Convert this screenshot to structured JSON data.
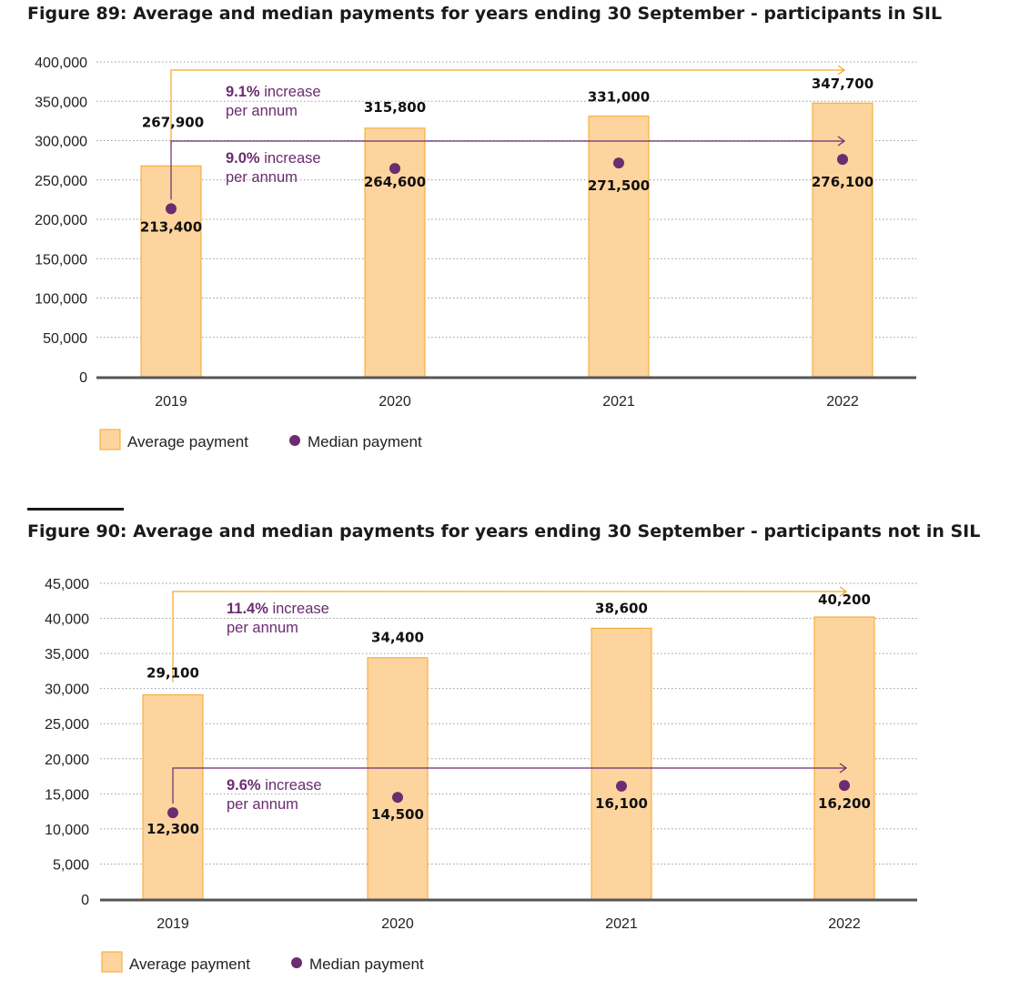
{
  "chart_data": [
    {
      "type": "bar",
      "title": "Figure 89: Average and median payments for years ending 30 September - participants in SIL",
      "categories": [
        "2019",
        "2020",
        "2021",
        "2022"
      ],
      "ylim": [
        0,
        400000
      ],
      "yticks": [
        "0",
        "50,000",
        "100,000",
        "150,000",
        "200,000",
        "250,000",
        "300,000",
        "350,000",
        "400,000"
      ],
      "grid": true,
      "legend_placement": "bottom-left",
      "series": [
        {
          "name": "Average payment",
          "kind": "bar",
          "color": "#fdd49e",
          "edge": "#f5a623",
          "values": [
            267900,
            315800,
            331000,
            347700
          ],
          "labels": [
            "267,900",
            "315,800",
            "331,000",
            "347,700"
          ]
        },
        {
          "name": "Median payment",
          "kind": "point",
          "color": "#6b2c70",
          "values": [
            213400,
            264600,
            271500,
            276100
          ],
          "labels": [
            "213,400",
            "264,600",
            "271,500",
            "276,100"
          ]
        }
      ],
      "annotations": [
        {
          "series": "Average payment",
          "rate": "9.1%",
          "text": " increase",
          "text2": "per annum",
          "color": "#f5a623"
        },
        {
          "series": "Median payment",
          "rate": "9.0%",
          "text": " increase",
          "text2": "per annum",
          "color": "#6b2c70"
        }
      ]
    },
    {
      "type": "bar",
      "title": "Figure 90: Average and median payments for years ending 30 September - participants not in SIL",
      "categories": [
        "2019",
        "2020",
        "2021",
        "2022"
      ],
      "ylim": [
        0,
        45000
      ],
      "yticks": [
        "0",
        "5,000",
        "10,000",
        "15,000",
        "20,000",
        "25,000",
        "30,000",
        "35,000",
        "40,000",
        "45,000"
      ],
      "grid": true,
      "legend_placement": "bottom-left",
      "series": [
        {
          "name": "Average payment",
          "kind": "bar",
          "color": "#fdd49e",
          "edge": "#f5a623",
          "values": [
            29100,
            34400,
            38600,
            40200
          ],
          "labels": [
            "29,100",
            "34,400",
            "38,600",
            "40,200"
          ]
        },
        {
          "name": "Median payment",
          "kind": "point",
          "color": "#6b2c70",
          "values": [
            12300,
            14500,
            16100,
            16200
          ],
          "labels": [
            "12,300",
            "14,500",
            "16,100",
            "16,200"
          ]
        }
      ],
      "annotations": [
        {
          "series": "Average payment",
          "rate": "11.4%",
          "text": " increase",
          "text2": "per annum",
          "color": "#f5a623"
        },
        {
          "series": "Median payment",
          "rate": "9.6%",
          "text": " increase",
          "text2": "per annum",
          "color": "#6b2c70"
        }
      ]
    }
  ]
}
